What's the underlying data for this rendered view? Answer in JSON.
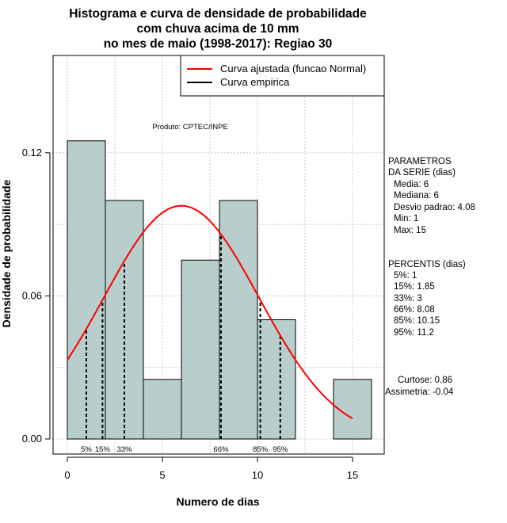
{
  "chart_data": {
    "type": "bar",
    "title_lines": [
      "Histograma e curva de densidade de probabilidade",
      "com chuva acima de 10 mm",
      "no mes de maio (1998-2017): Regiao 30"
    ],
    "xlabel": "Numero de dias",
    "ylabel": "Densidade de probabilidade",
    "xlim": [
      -1,
      16.5
    ],
    "ylim": [
      0,
      0.15
    ],
    "x_ticks": [
      0,
      5,
      10,
      15
    ],
    "y_ticks": [
      0.0,
      0.06,
      0.12
    ],
    "y_tick_labels": [
      "0.00",
      "0.06",
      "0.12"
    ],
    "grid": true,
    "bins": [
      {
        "start": 0,
        "end": 2,
        "density": 0.125
      },
      {
        "start": 2,
        "end": 4,
        "density": 0.1
      },
      {
        "start": 4,
        "end": 6,
        "density": 0.025
      },
      {
        "start": 6,
        "end": 8,
        "density": 0.075
      },
      {
        "start": 8,
        "end": 10,
        "density": 0.1
      },
      {
        "start": 10,
        "end": 12,
        "density": 0.05
      },
      {
        "start": 12,
        "end": 14,
        "density": 0
      },
      {
        "start": 14,
        "end": 16,
        "density": 0.025
      }
    ],
    "normal_curve": {
      "name": "Curva ajustada (funcao Normal)",
      "mean": 6,
      "sd": 4.08,
      "x_range": [
        0,
        15
      ],
      "color": "#ff0000"
    },
    "percentile_markers": [
      {
        "label": "5%",
        "x": 1
      },
      {
        "label": "15%",
        "x": 1.85
      },
      {
        "label": "33%",
        "x": 3
      },
      {
        "label": "66%",
        "x": 8.08
      },
      {
        "label": "85%",
        "x": 10.15
      },
      {
        "label": "95%",
        "x": 11.2
      }
    ],
    "legend": {
      "position": "top-right",
      "entries": [
        {
          "label": "Curva ajustada (funcao Normal)",
          "color": "#ff0000"
        },
        {
          "label": "Curva empirica",
          "color": "#000000"
        }
      ]
    },
    "annotation": "Produto: CPTEC/INPE",
    "bar_color": "#b7cecd"
  },
  "stats_panel": {
    "parametros": [
      "PARAMETROS",
      "DA SERIE (dias)",
      "Media: 6",
      "Mediana: 6",
      "Desvio padrao: 4.08",
      "Min: 1",
      "Max: 15"
    ],
    "percentis": [
      "PERCENTIS (dias)",
      "5%: 1",
      "15%: 1.85",
      "33%: 3",
      "66%: 8.08",
      "85%: 10.15",
      "95%: 11.2"
    ],
    "shape": [
      "Curtose: 0.86",
      "Assimetria: -0.04"
    ]
  }
}
